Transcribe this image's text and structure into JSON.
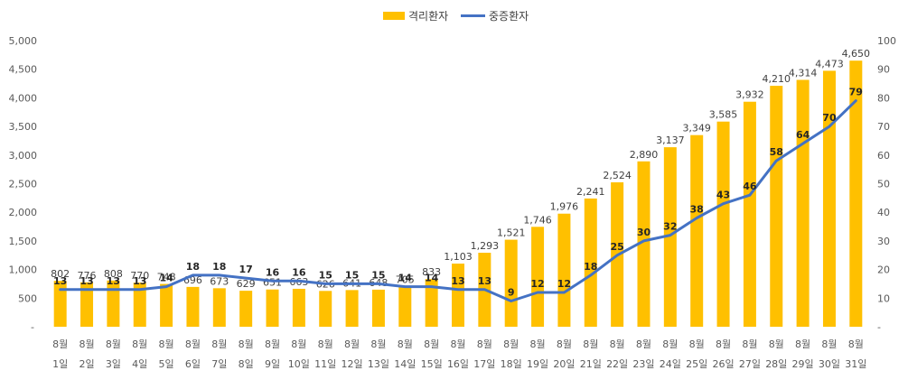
{
  "chart_data": {
    "type": "bar+line",
    "categories": [
      "8월 1일",
      "8월 2일",
      "8월 3일",
      "8월 4일",
      "8월 5일",
      "8월 6일",
      "8월 7일",
      "8월 8일",
      "8월 9일",
      "8월 10일",
      "8월 11일",
      "8월 12일",
      "8월 13일",
      "8월 14일",
      "8월 15일",
      "8월 16일",
      "8월 17일",
      "8월 18일",
      "8월 19일",
      "8월 20일",
      "8월 21일",
      "8월 22일",
      "8월 23일",
      "8월 24일",
      "8월 25일",
      "8월 26일",
      "8월 27일",
      "8월 28일",
      "8월 29일",
      "8월 30일",
      "8월 31일"
    ],
    "category_lines": [
      [
        "8월",
        "1일"
      ],
      [
        "8월",
        "2일"
      ],
      [
        "8월",
        "3일"
      ],
      [
        "8월",
        "4일"
      ],
      [
        "8월",
        "5일"
      ],
      [
        "8월",
        "6일"
      ],
      [
        "8월",
        "7일"
      ],
      [
        "8월",
        "8일"
      ],
      [
        "8월",
        "9일"
      ],
      [
        "8월",
        "10일"
      ],
      [
        "8월",
        "11일"
      ],
      [
        "8월",
        "12일"
      ],
      [
        "8월",
        "13일"
      ],
      [
        "8월",
        "14일"
      ],
      [
        "8월",
        "15일"
      ],
      [
        "8월",
        "16일"
      ],
      [
        "8월",
        "17일"
      ],
      [
        "8월",
        "18일"
      ],
      [
        "8월",
        "19일"
      ],
      [
        "8월",
        "20일"
      ],
      [
        "8월",
        "21일"
      ],
      [
        "8월",
        "22일"
      ],
      [
        "8월",
        "23일"
      ],
      [
        "8월",
        "24일"
      ],
      [
        "8월",
        "25일"
      ],
      [
        "8월",
        "26일"
      ],
      [
        "8월",
        "27일"
      ],
      [
        "8월",
        "28일"
      ],
      [
        "8월",
        "29일"
      ],
      [
        "8월",
        "30일"
      ],
      [
        "8월",
        "31일"
      ]
    ],
    "series": [
      {
        "name": "격리환자",
        "kind": "bar",
        "axis": "left",
        "color": "#FFC000",
        "values": [
          802,
          776,
          808,
          770,
          748,
          696,
          673,
          629,
          651,
          663,
          626,
          641,
          648,
          705,
          833,
          1103,
          1293,
          1521,
          1746,
          1976,
          2241,
          2524,
          2890,
          3137,
          3349,
          3585,
          3932,
          4210,
          4314,
          4473,
          4650
        ],
        "labels": [
          "802",
          "776",
          "808",
          "770",
          "748",
          "696",
          "673",
          "629",
          "651",
          "663",
          "626",
          "641",
          "648",
          "705",
          "833",
          "1,103",
          "1,293",
          "1,521",
          "1,746",
          "1,976",
          "2,241",
          "2,524",
          "2,890",
          "3,137",
          "3,349",
          "3,585",
          "3,932",
          "4,210",
          "4,314",
          "4,473",
          "4,650"
        ]
      },
      {
        "name": "중증환자",
        "kind": "line",
        "axis": "right",
        "color": "#4472C4",
        "values": [
          13,
          13,
          13,
          13,
          14,
          18,
          18,
          17,
          16,
          16,
          15,
          15,
          15,
          14,
          14,
          13,
          13,
          9,
          12,
          12,
          18,
          25,
          30,
          32,
          38,
          43,
          46,
          58,
          64,
          70,
          79
        ]
      }
    ],
    "y_left": {
      "min": 0,
      "max": 5000,
      "step": 500,
      "tick_labels": [
        "-",
        "500",
        "1,000",
        "1,500",
        "2,000",
        "2,500",
        "3,000",
        "3,500",
        "4,000",
        "4,500",
        "5,000"
      ]
    },
    "y_right": {
      "min": 0,
      "max": 100,
      "step": 10,
      "tick_labels": [
        "-",
        "10",
        "20",
        "30",
        "40",
        "50",
        "60",
        "70",
        "80",
        "90",
        "100"
      ]
    },
    "legend": {
      "position": "top-center"
    },
    "grid": false
  }
}
